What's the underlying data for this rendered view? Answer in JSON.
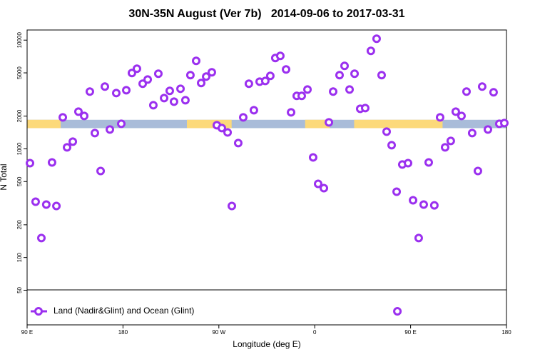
{
  "chart_data": {
    "type": "scatter",
    "title": "30N-35N August (Ver 7b)   2014-09-06 to 2017-03-31",
    "x_label": "Longitude (deg E)",
    "y_label": "N Total",
    "log_y": true,
    "xlim": [
      90,
      540
    ],
    "ylim": [
      24,
      12400
    ],
    "xticks": [
      {
        "value": 90,
        "label": "90 E"
      },
      180,
      {
        "value": 270,
        "label": "90 W"
      },
      {
        "value": 360,
        "label": "0"
      },
      {
        "value": 450,
        "label": "90 E"
      },
      {
        "value": 540,
        "label": "180"
      }
    ],
    "yticks": [
      50,
      100,
      200,
      500,
      1000,
      2000,
      5000,
      10000
    ],
    "legend": "lower left",
    "surface_band": {
      "range": [
        1550,
        1850
      ],
      "ocean_color": "#a9bcd9",
      "land_color": "#fcd97a",
      "land_segments": [
        [
          90,
          121.5
        ],
        [
          240,
          282
        ],
        [
          351,
          374
        ],
        [
          397,
          480
        ]
      ]
    },
    "series": [
      {
        "name": "Land (Nadir&Glint) and Ocean (Glint)",
        "color": "#9b30ef",
        "x": [
          92.7,
          98,
          103.4,
          108,
          113.4,
          117.5,
          123.5,
          127.5,
          132.9,
          138.2,
          143.6,
          148.9,
          153.6,
          159,
          163,
          167.7,
          173.7,
          178.4,
          183.1,
          188.4,
          193.1,
          198.5,
          203.2,
          208.5,
          213.2,
          218.6,
          223.9,
          227.9,
          234,
          238.6,
          243.3,
          248.7,
          253.4,
          258.1,
          263.4,
          268.1,
          272.8,
          278.2,
          282.2,
          288.2,
          292.9,
          298.2,
          302.9,
          308.3,
          313.6,
          318.3,
          323,
          327.7,
          333.1,
          337.8,
          343.1,
          347.8,
          353.2,
          358.5,
          363.2,
          368.6,
          373.3,
          377.3,
          383.3,
          388,
          392.7,
          397.4,
          402.7,
          407.4,
          412.7,
          418.1,
          422.8,
          427.5,
          432.2,
          436.9,
          437.6,
          442.2,
          447.6,
          452.3,
          457.6,
          462.3,
          467,
          472.3,
          477.7,
          482.4,
          487.7,
          492.4,
          497.8,
          502.5,
          507.8,
          513.2,
          517.2,
          522.6,
          527.9,
          533.3,
          538
        ],
        "values": [
          738,
          326,
          151,
          307,
          750,
          298,
          1946,
          1031,
          1165,
          2198,
          2008,
          3361,
          1396,
          625,
          3736,
          1505,
          3260,
          1699,
          3459,
          4982,
          5460,
          3970,
          4345,
          2518,
          4908,
          2931,
          3413,
          2717,
          3570,
          2800,
          4760,
          6443,
          4030,
          4617,
          5058,
          1650,
          1552,
          1416,
          298,
          1129,
          1946,
          3970,
          2266,
          4150,
          4210,
          4690,
          6853,
          7165,
          5375,
          2167,
          3069,
          3069,
          3516,
          834,
          476,
          435,
          1751,
          3361,
          4760,
          5795,
          3516,
          4908,
          2335,
          2370,
          7965,
          10307,
          4760,
          1439,
          1079,
          403,
          32,
          717,
          738,
          336,
          151,
          307,
          750,
          302,
          1946,
          1031,
          1182,
          2198,
          2008,
          3361,
          1396,
          625,
          3736,
          1505,
          3311,
          1699,
          1725
        ]
      }
    ]
  }
}
